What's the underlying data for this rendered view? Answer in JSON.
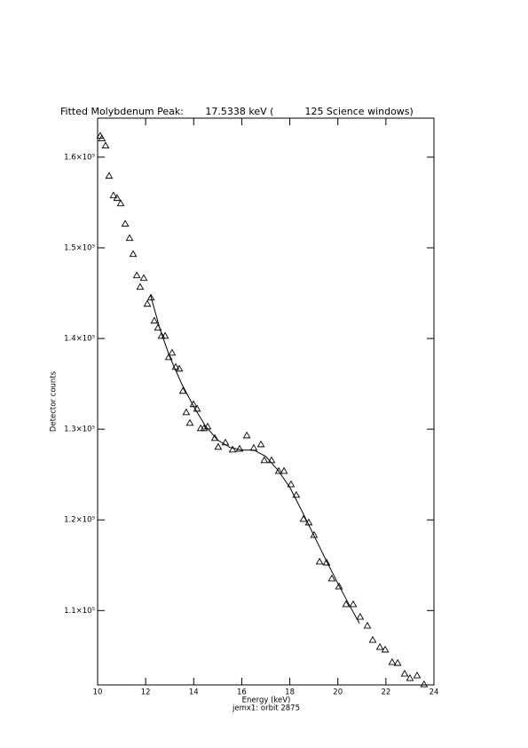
{
  "chart_data": {
    "type": "scatter",
    "title": "Fitted Molybdenum Peak:       17.5338 keV (          125 Science windows)",
    "x_label": "Energy (keV)",
    "subtitle": "jemx1: orbit 2875",
    "y_label": "Detector counts",
    "xlim": [
      10,
      24
    ],
    "ylim": [
      101800,
      164300
    ],
    "xticks": [
      10,
      12,
      14,
      16,
      18,
      20,
      22,
      24
    ],
    "yticks": [
      {
        "value": 110000,
        "label": "1.1×10⁵"
      },
      {
        "value": 120000,
        "label": "1.2×10⁵"
      },
      {
        "value": 130000,
        "label": "1.3×10⁵"
      },
      {
        "value": 140000,
        "label": "1.4×10⁵"
      },
      {
        "value": 150000,
        "label": "1.5×10⁵"
      },
      {
        "value": 160000,
        "label": "1.6×10⁵"
      }
    ],
    "series": [
      {
        "type": "scatter",
        "marker": "triangle",
        "color": "#000000",
        "x": [
          10.11,
          10.18,
          10.33,
          10.48,
          10.66,
          10.81,
          10.96,
          11.15,
          11.33,
          11.48,
          11.63,
          11.77,
          11.92,
          12.07,
          12.22,
          12.36,
          12.51,
          12.66,
          12.81,
          12.96,
          13.1,
          13.25,
          13.4,
          13.55,
          13.69,
          13.84,
          13.99,
          14.14,
          14.29,
          14.43,
          14.58,
          14.88,
          15.02,
          15.32,
          15.62,
          15.91,
          16.21,
          16.5,
          16.8,
          16.94,
          17.24,
          17.54,
          17.76,
          18.05,
          18.27,
          18.57,
          18.79,
          19.01,
          19.24,
          19.53,
          19.75,
          20.05,
          20.34,
          20.64,
          20.93,
          21.23,
          21.45,
          21.75,
          21.97,
          22.26,
          22.49,
          22.78,
          23.0,
          23.3,
          23.59
        ],
        "values": [
          162350,
          162060,
          161280,
          157940,
          155780,
          155490,
          154900,
          152650,
          151080,
          149310,
          146960,
          145690,
          146670,
          143820,
          144510,
          141960,
          141180,
          140290,
          140290,
          137940,
          138430,
          136860,
          136670,
          134220,
          131860,
          130690,
          132750,
          132250,
          130100,
          130100,
          130290,
          129020,
          128040,
          128530,
          127750,
          127840,
          129310,
          127940,
          128330,
          126570,
          126570,
          125390,
          125390,
          123920,
          122750,
          120100,
          119710,
          118330,
          115390,
          115290,
          113530,
          112650,
          110690,
          110690,
          109310,
          108330,
          106760,
          105980,
          105690,
          104310,
          104220,
          103040,
          102550,
          102840,
          101860
        ]
      },
      {
        "type": "line",
        "color": "#000000",
        "x": [
          12.2,
          12.6,
          13.0,
          13.5,
          14.0,
          14.5,
          15.0,
          15.5,
          16.0,
          16.5,
          17.0,
          17.5,
          18.0,
          18.5,
          19.0,
          19.5,
          20.0,
          20.5,
          20.9
        ],
        "values": [
          144800,
          141000,
          138000,
          135000,
          132500,
          130300,
          128800,
          128000,
          127700,
          127700,
          127000,
          125500,
          123600,
          121000,
          118300,
          115600,
          113000,
          110500,
          108600
        ]
      }
    ]
  }
}
